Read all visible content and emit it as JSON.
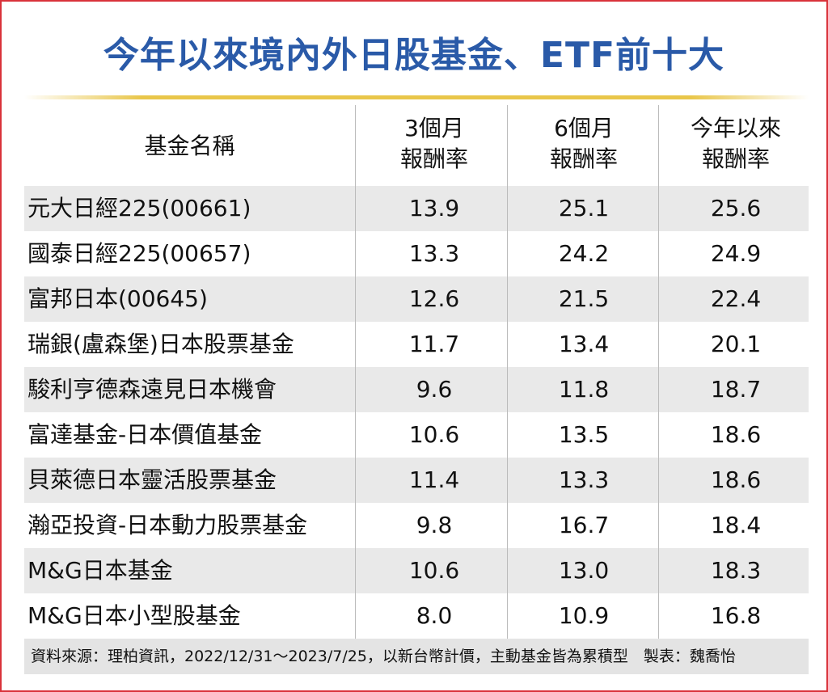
{
  "title": "今年以來境內外日股基金、ETF前十大",
  "table": {
    "headers": [
      [
        "基金名稱"
      ],
      [
        "3個月",
        "報酬率"
      ],
      [
        "6個月",
        "報酬率"
      ],
      [
        "今年以來",
        "報酬率"
      ]
    ],
    "rows": [
      [
        "元大日經225(00661)",
        "13.9",
        "25.1",
        "25.6"
      ],
      [
        "國泰日經225(00657)",
        "13.3",
        "24.2",
        "24.9"
      ],
      [
        "富邦日本(00645)",
        "12.6",
        "21.5",
        "22.4"
      ],
      [
        "瑞銀(盧森堡)日本股票基金",
        "11.7",
        "13.4",
        "20.1"
      ],
      [
        "駿利亨德森遠見日本機會",
        "9.6",
        "11.8",
        "18.7"
      ],
      [
        "富達基金-日本價值基金",
        "10.6",
        "13.5",
        "18.6"
      ],
      [
        "貝萊德日本靈活股票基金",
        "11.4",
        "13.3",
        "18.6"
      ],
      [
        "瀚亞投資-日本動力股票基金",
        "9.8",
        "16.7",
        "18.4"
      ],
      [
        "M&G日本基金",
        "10.6",
        "13.0",
        "18.3"
      ],
      [
        "M&G日本小型股基金",
        "8.0",
        "10.9",
        "16.8"
      ]
    ]
  },
  "footer": "資料來源：理柏資訊，2022/12/31～2023/7/25，以新台幣計價，主動基金皆為累積型　製表：魏喬怡"
}
